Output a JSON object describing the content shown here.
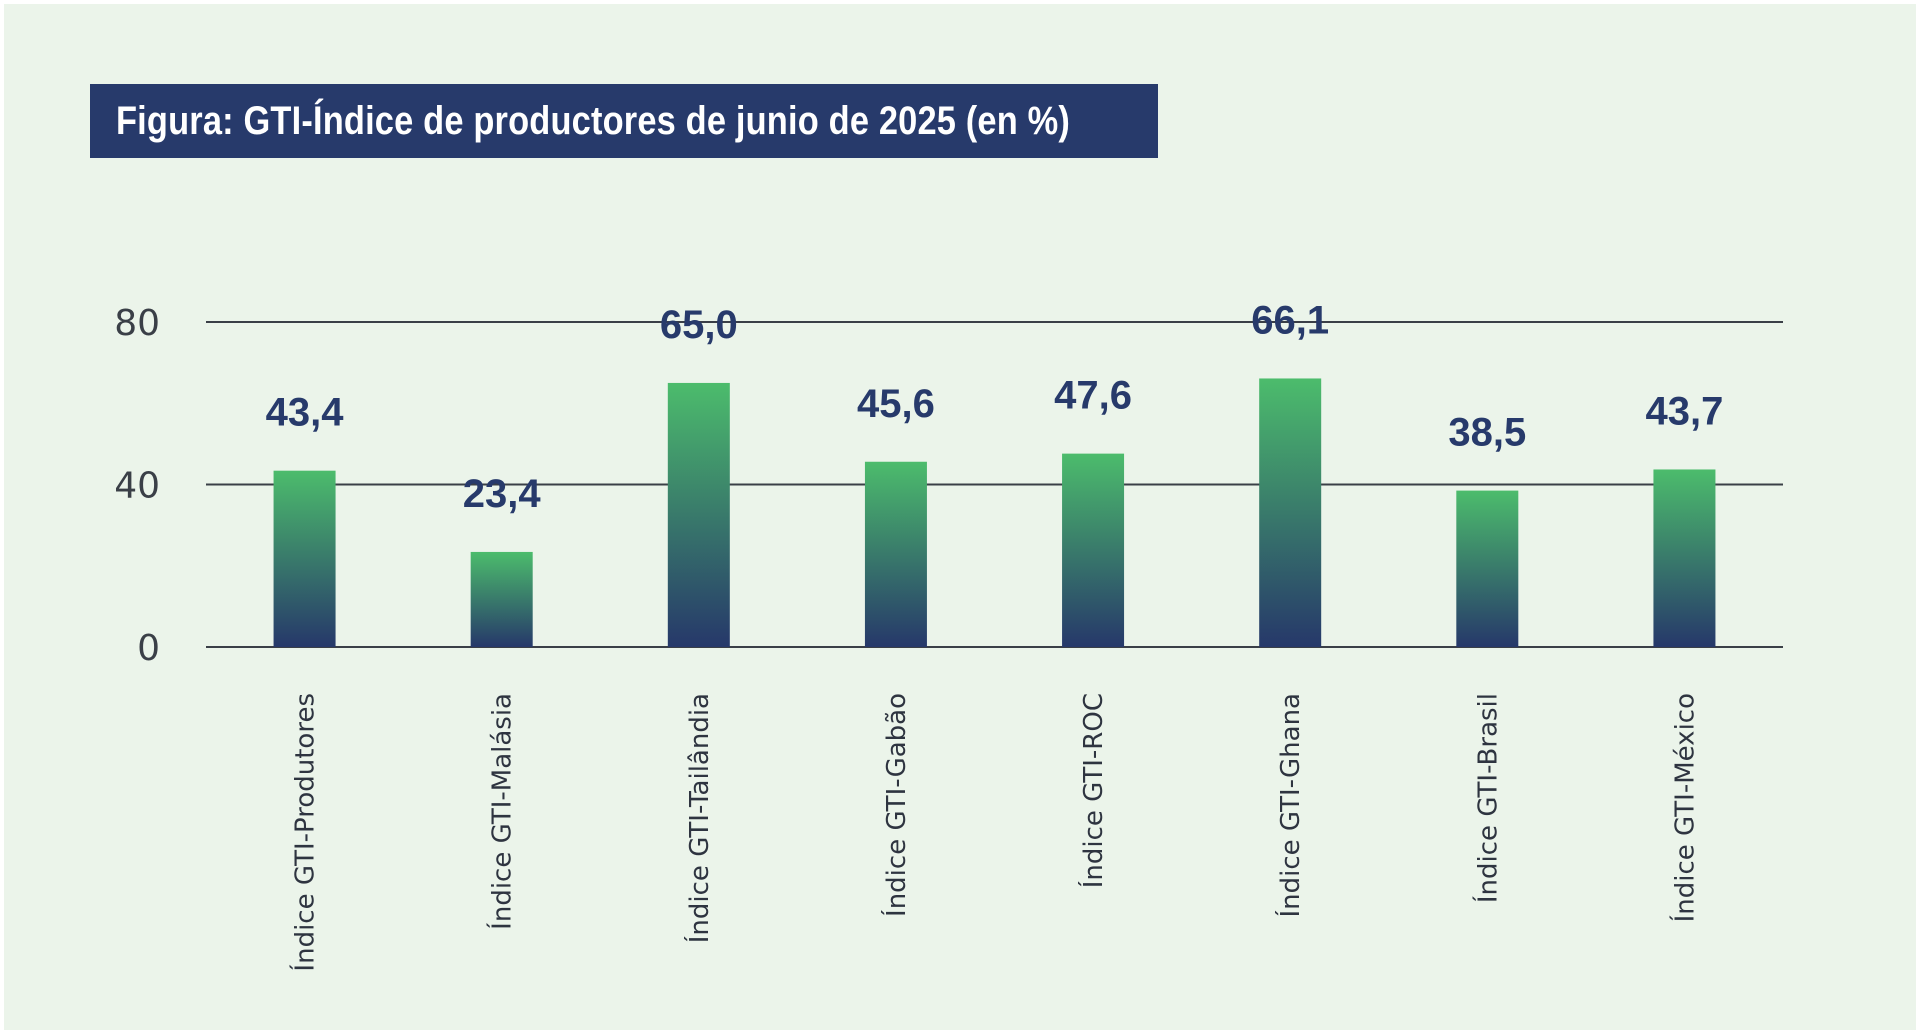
{
  "title": "Figura: GTI-Índice de productores de junio de 2025 (en %)",
  "colors": {
    "background": "#ebf4ea",
    "title_bg": "#273a6b",
    "bar_top": "#4cbc6c",
    "bar_bottom": "#26386a",
    "value_label": "#273a6b",
    "gridline": "#3a3f47"
  },
  "chart_data": {
    "type": "bar",
    "categories": [
      "Índice GTI-Produtores",
      "Índice GTI-Malásia",
      "Índice GTI-Tailândia",
      "Índice GTI-Gabão",
      "Índice GTI-ROC",
      "Índice GTI-Ghana",
      "Índice GTI-Brasil",
      "Índice GTI-México"
    ],
    "values": [
      43.4,
      23.4,
      65.0,
      45.6,
      47.6,
      66.1,
      38.5,
      43.7
    ],
    "value_labels": [
      "43,4",
      "23,4",
      "65,0",
      "45,6",
      "47,6",
      "66,1",
      "38,5",
      "43,7"
    ],
    "yticks": [
      0,
      40,
      80
    ],
    "ytick_labels": [
      "0",
      "40",
      "80"
    ],
    "ylim": [
      0,
      80
    ],
    "grid": true,
    "xlabel": "",
    "ylabel": ""
  }
}
